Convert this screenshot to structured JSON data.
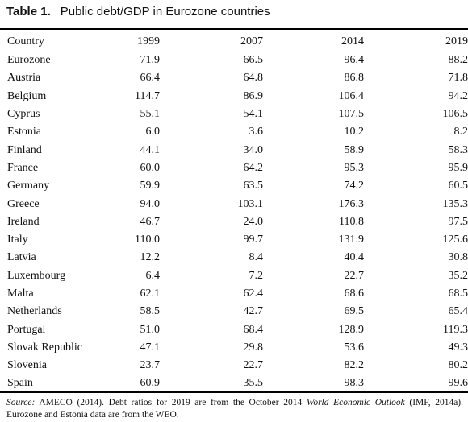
{
  "caption": {
    "label": "Table 1.",
    "title": "Public debt/GDP in Eurozone countries"
  },
  "table": {
    "headers": [
      "Country",
      "1999",
      "2007",
      "2014",
      "2019"
    ],
    "rows": [
      [
        "Eurozone",
        "71.9",
        "66.5",
        "96.4",
        "88.2"
      ],
      [
        "Austria",
        "66.4",
        "64.8",
        "86.8",
        "71.8"
      ],
      [
        "Belgium",
        "114.7",
        "86.9",
        "106.4",
        "94.2"
      ],
      [
        "Cyprus",
        "55.1",
        "54.1",
        "107.5",
        "106.5"
      ],
      [
        "Estonia",
        "6.0",
        "3.6",
        "10.2",
        "8.2"
      ],
      [
        "Finland",
        "44.1",
        "34.0",
        "58.9",
        "58.3"
      ],
      [
        "France",
        "60.0",
        "64.2",
        "95.3",
        "95.9"
      ],
      [
        "Germany",
        "59.9",
        "63.5",
        "74.2",
        "60.5"
      ],
      [
        "Greece",
        "94.0",
        "103.1",
        "176.3",
        "135.3"
      ],
      [
        "Ireland",
        "46.7",
        "24.0",
        "110.8",
        "97.5"
      ],
      [
        "Italy",
        "110.0",
        "99.7",
        "131.9",
        "125.6"
      ],
      [
        "Latvia",
        "12.2",
        "8.4",
        "40.4",
        "30.8"
      ],
      [
        "Luxembourg",
        "6.4",
        "7.2",
        "22.7",
        "35.2"
      ],
      [
        "Malta",
        "62.1",
        "62.4",
        "68.6",
        "68.5"
      ],
      [
        "Netherlands",
        "58.5",
        "42.7",
        "69.5",
        "65.4"
      ],
      [
        "Portugal",
        "51.0",
        "68.4",
        "128.9",
        "119.3"
      ],
      [
        "Slovak Republic",
        "47.1",
        "29.8",
        "53.6",
        "49.3"
      ],
      [
        "Slovenia",
        "23.7",
        "22.7",
        "82.2",
        "80.2"
      ],
      [
        "Spain",
        "60.9",
        "35.5",
        "98.3",
        "99.6"
      ]
    ]
  },
  "source": {
    "label": "Source:",
    "text_before": "AMECO (2014). Debt ratios for 2019 are from the October 2014",
    "publication": "World Economic Outlook",
    "text_after": "(IMF, 2014a). Eurozone and Estonia data are from the WEO."
  }
}
